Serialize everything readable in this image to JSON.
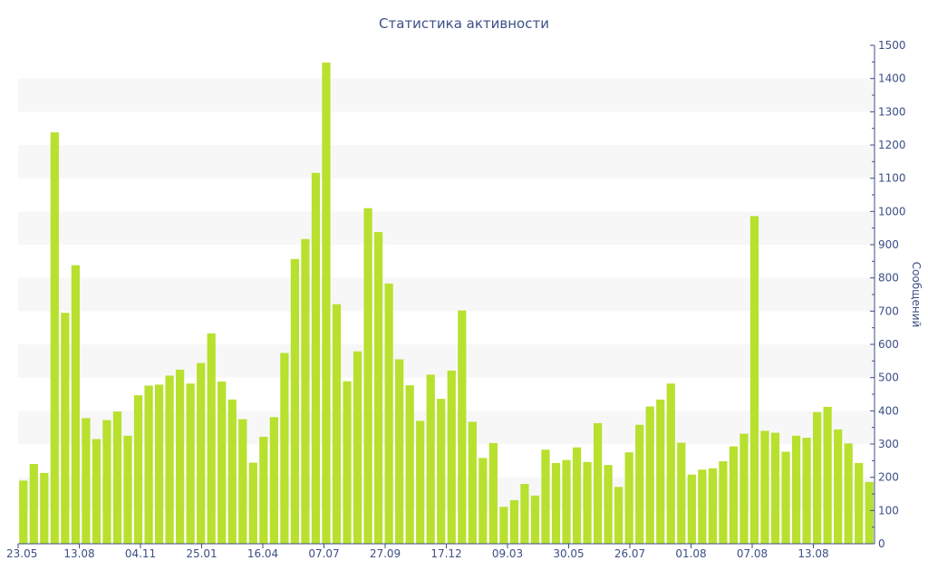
{
  "chart_data": {
    "type": "bar",
    "title": "Статистика активности",
    "ylabel": "Сообщений",
    "xlabel": "",
    "ylim": [
      0,
      1500
    ],
    "y_ticks": [
      0,
      100,
      200,
      300,
      400,
      500,
      600,
      700,
      800,
      900,
      1000,
      1100,
      1200,
      1300,
      1400,
      1500
    ],
    "y_axis_side": "right",
    "grid": "alternating horizontal bands",
    "x_tick_labels": [
      "23.05",
      "13.08",
      "04.11",
      "25.01",
      "16.04",
      "07.07",
      "27.09",
      "17.12",
      "09.03",
      "30.05",
      "26.07",
      "01.08",
      "07.08",
      "13.08"
    ],
    "bar_color": "#b8e02e",
    "values": [
      190,
      240,
      213,
      1238,
      695,
      838,
      378,
      315,
      372,
      398,
      325,
      447,
      476,
      479,
      506,
      524,
      482,
      544,
      633,
      488,
      434,
      375,
      244,
      322,
      381,
      574,
      857,
      917,
      1116,
      1448,
      721,
      489,
      579,
      1010,
      938,
      783,
      555,
      477,
      370,
      509,
      436,
      521,
      702,
      367,
      258,
      303,
      111,
      131,
      180,
      145,
      283,
      243,
      252,
      290,
      246,
      363,
      237,
      171,
      275,
      358,
      413,
      434,
      482,
      304,
      208,
      223,
      227,
      248,
      293,
      331,
      986,
      340,
      334,
      277,
      325,
      319,
      396,
      412,
      344,
      302,
      243,
      186
    ]
  }
}
